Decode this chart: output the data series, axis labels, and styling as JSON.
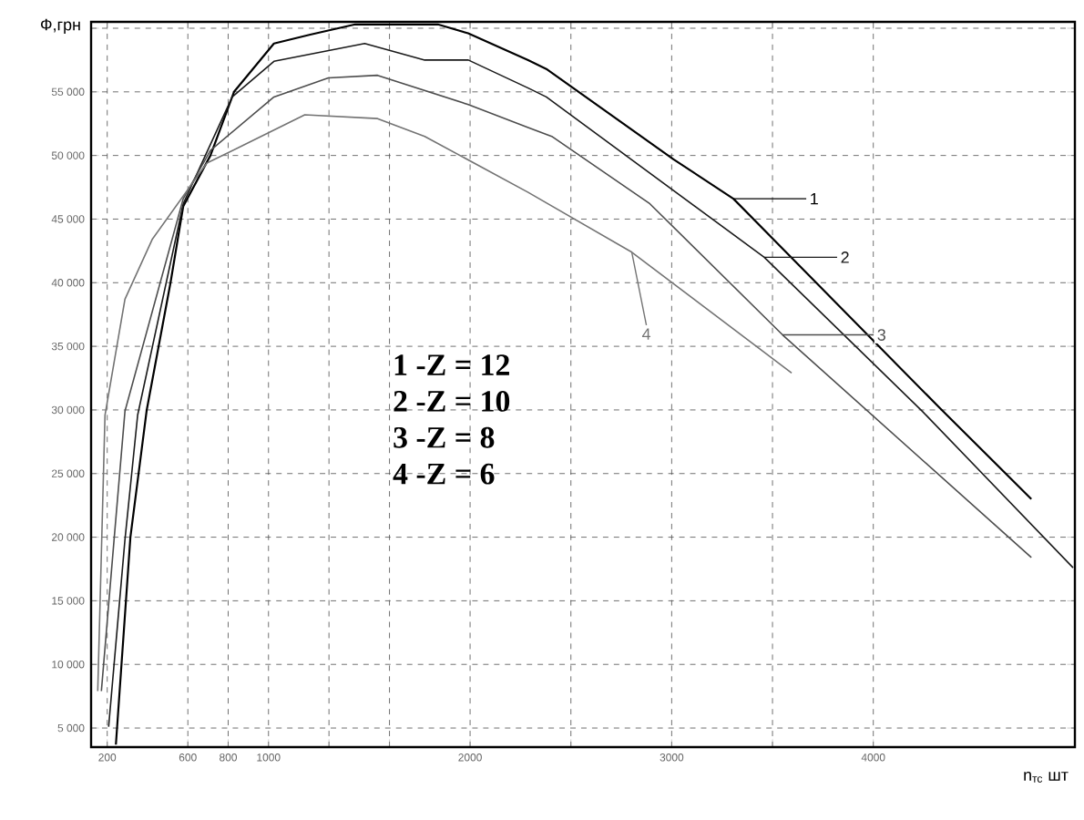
{
  "chart_data": {
    "type": "line",
    "ylabel": "Ф,грн",
    "xlabel": "n$_{тс}$ шт",
    "xlim": [
      120,
      5000
    ],
    "ylim": [
      3500,
      60500
    ],
    "xticks": [
      200,
      600,
      800,
      1000,
      {
        "value": 1300,
        "label": null
      },
      {
        "value": 1600,
        "label": null
      },
      2000,
      {
        "value": 2500,
        "label": null
      },
      3000,
      {
        "value": 3500,
        "label": null
      },
      4000
    ],
    "yticks": [
      {
        "value": 5000,
        "label": "5 000"
      },
      {
        "value": 10000,
        "label": "10 000"
      },
      {
        "value": 15000,
        "label": "15 000"
      },
      {
        "value": 20000,
        "label": "20 000"
      },
      {
        "value": 25000,
        "label": "25 000"
      },
      {
        "value": 30000,
        "label": "30 000"
      },
      {
        "value": 35000,
        "label": "35 000"
      },
      {
        "value": 40000,
        "label": "40 000"
      },
      {
        "value": 45000,
        "label": "45 000"
      },
      {
        "value": 50000,
        "label": "50 000"
      },
      {
        "value": 55000,
        "label": "55 000"
      },
      {
        "value": 60000,
        "label": null
      }
    ],
    "grid": true,
    "legend": "right",
    "line_style": "solid",
    "marker": "none",
    "annotations": [
      "1 -Z = 12",
      "2 -Z = 10",
      "3 -Z = 8",
      "4 -Z = 6"
    ],
    "series": [
      {
        "name": "1",
        "color": "#000000",
        "x": [
          243,
          315,
          396,
          514,
          577,
          712,
          829,
          1027,
          1207,
          1430,
          1840,
          1990,
          2288,
          2378,
          3009,
          3306,
          4333,
          4784
        ],
        "values": [
          3700,
          20000,
          30000,
          40000,
          46000,
          50000,
          55000,
          58800,
          59500,
          60300,
          60300,
          59600,
          57500,
          56800,
          49700,
          46600,
          30100,
          23000
        ]
      },
      {
        "name": "2",
        "color": "#1a1a1a",
        "x": [
          207,
          288,
          351,
          577,
          820,
          1027,
          1477,
          1775,
          1991,
          2288,
          2378,
          3459,
          4243,
          4991
        ],
        "values": [
          5100,
          19800,
          29600,
          46200,
          54600,
          57400,
          58800,
          57500,
          57500,
          55300,
          54600,
          42000,
          29900,
          17600
        ]
      },
      {
        "name": "3",
        "color": "#4d4d4d",
        "x": [
          171,
          234,
          288,
          577,
          712,
          1027,
          1297,
          1541,
          1991,
          2288,
          2405,
          2892,
          3550,
          4784
        ],
        "values": [
          7900,
          19800,
          29900,
          46600,
          50400,
          54600,
          56100,
          56300,
          54000,
          52200,
          51500,
          46200,
          35900,
          18400
        ]
      },
      {
        "name": "4",
        "color": "#737373",
        "x": [
          153,
          189,
          288,
          423,
          694,
          874,
          1180,
          1541,
          1775,
          2288,
          2802,
          3595
        ],
        "values": [
          7900,
          29600,
          38700,
          43400,
          49400,
          50800,
          53200,
          52900,
          51500,
          47100,
          42400,
          32900
        ]
      }
    ]
  }
}
